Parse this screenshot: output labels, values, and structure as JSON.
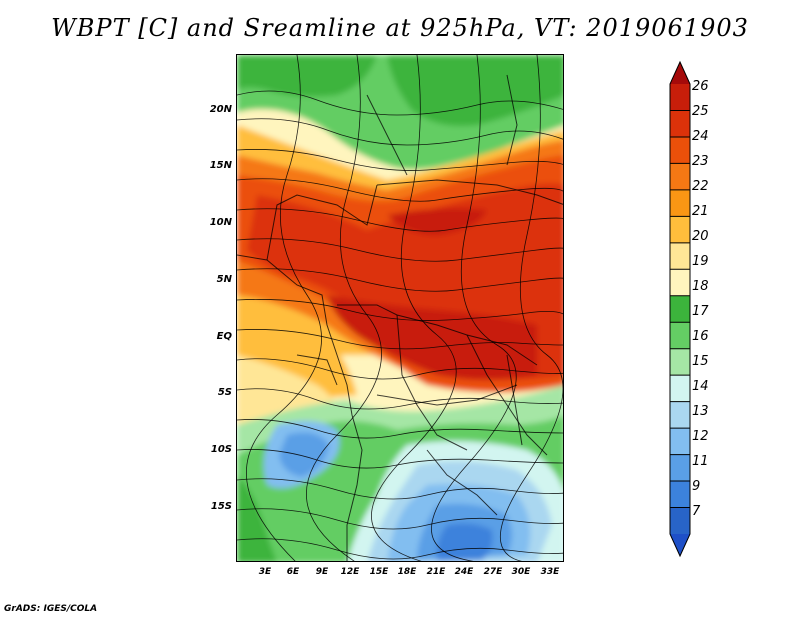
{
  "title": "WBPT [C] and Sreamline at 925hPa, VT: 2019061903",
  "footer": "GrADS: IGES/COLA",
  "map": {
    "lat_labels": [
      "20N",
      "15N",
      "10N",
      "5N",
      "EQ",
      "5S",
      "10S",
      "15S"
    ],
    "lat_values": [
      20,
      15,
      10,
      5,
      0,
      -5,
      -10,
      -15
    ],
    "lon_labels": [
      "3E",
      "6E",
      "9E",
      "12E",
      "15E",
      "18E",
      "21E",
      "24E",
      "27E",
      "30E",
      "33E"
    ],
    "lon_values": [
      3,
      6,
      9,
      12,
      15,
      18,
      21,
      24,
      27,
      30,
      33
    ],
    "lat_range": [
      -20,
      25
    ],
    "lon_range": [
      0,
      34.5
    ]
  },
  "colorbar": {
    "labels": [
      "26",
      "25",
      "24",
      "23",
      "22",
      "21",
      "20",
      "19",
      "18",
      "17",
      "16",
      "15",
      "14",
      "13",
      "12",
      "11",
      "9",
      "7"
    ],
    "colors": [
      "#a50a0a",
      "#c81e0a",
      "#dc320a",
      "#eb500a",
      "#f57814",
      "#fa9614",
      "#ffbe3c",
      "#ffe696",
      "#fff5be",
      "#3cb43c",
      "#64cd64",
      "#a5e6a5",
      "#d2f5f0",
      "#aad7f0",
      "#82bef0",
      "#5a9fe6",
      "#3c82dc",
      "#2864c8",
      "#1e50c8"
    ]
  }
}
